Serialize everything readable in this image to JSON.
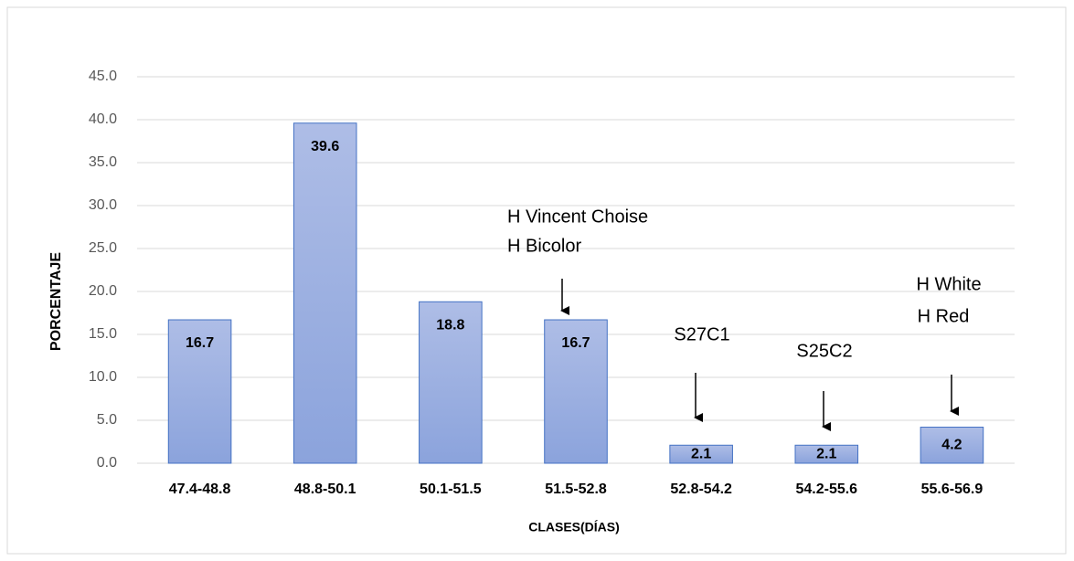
{
  "chart_data": {
    "type": "bar",
    "categories": [
      "47.4-48.8",
      "48.8-50.1",
      "50.1-51.5",
      "51.5-52.8",
      "52.8-54.2",
      "54.2-55.6",
      "55.6-56.9"
    ],
    "values": [
      16.7,
      39.6,
      18.8,
      16.7,
      2.1,
      2.1,
      4.2
    ],
    "color": "#4472c4",
    "ylim": [
      0,
      45
    ],
    "yticks": [
      {
        "value": 0,
        "label": "0.0"
      },
      {
        "value": 5,
        "label": "5.0"
      },
      {
        "value": 10,
        "label": "10.0"
      },
      {
        "value": 15,
        "label": "15.0"
      },
      {
        "value": 20,
        "label": "20.0"
      },
      {
        "value": 25,
        "label": "25.0"
      },
      {
        "value": 30,
        "label": "30.0"
      },
      {
        "value": 35,
        "label": "35.0"
      },
      {
        "value": 40,
        "label": "40.0"
      },
      {
        "value": 45,
        "label": "45.0"
      }
    ],
    "grid": true,
    "y_label": "PORCENTAJE",
    "x_label": "CLASES(DÍAS)",
    "annotations": [
      "H Vincent Choise",
      "H Bicolor",
      "S27C1",
      "S25C2",
      "H White",
      "H Red"
    ]
  }
}
